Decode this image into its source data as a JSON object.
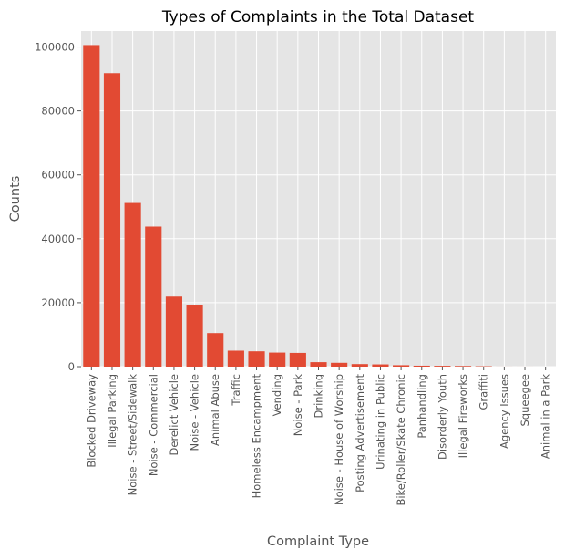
{
  "chart_data": {
    "type": "bar",
    "title": "Types of Complaints in the Total Dataset",
    "xlabel": "Complaint Type",
    "ylabel": "Counts",
    "ylim": [
      0,
      105000
    ],
    "yticks": [
      0,
      20000,
      40000,
      60000,
      80000,
      100000
    ],
    "ytick_labels": [
      "0",
      "20000",
      "40000",
      "60000",
      "80000",
      "100000"
    ],
    "grid": true,
    "legend": "none",
    "colors": {
      "bar": "#E24A33",
      "panel": "#E5E5E5",
      "grid": "#FFFFFF",
      "text": "#555555",
      "title": "#000000"
    },
    "categories": [
      "Blocked Driveway",
      "Illegal Parking",
      "Noise - Street/Sidewalk",
      "Noise - Commercial",
      "Derelict Vehicle",
      "Noise - Vehicle",
      "Animal Abuse",
      "Traffic",
      "Homeless Encampment",
      "Vending",
      "Noise - Park",
      "Drinking",
      "Noise - House of Worship",
      "Posting Advertisement",
      "Urinating in Public",
      "Bike/Roller/Skate Chronic",
      "Panhandling",
      "Disorderly Youth",
      "Illegal Fireworks",
      "Graffiti",
      "Agency Issues",
      "Squeegee",
      "Animal in a Park"
    ],
    "values": [
      100600,
      91800,
      51200,
      43800,
      21900,
      19400,
      10500,
      5000,
      4800,
      4400,
      4300,
      1400,
      1200,
      800,
      700,
      450,
      300,
      250,
      200,
      120,
      10,
      5,
      1
    ]
  }
}
